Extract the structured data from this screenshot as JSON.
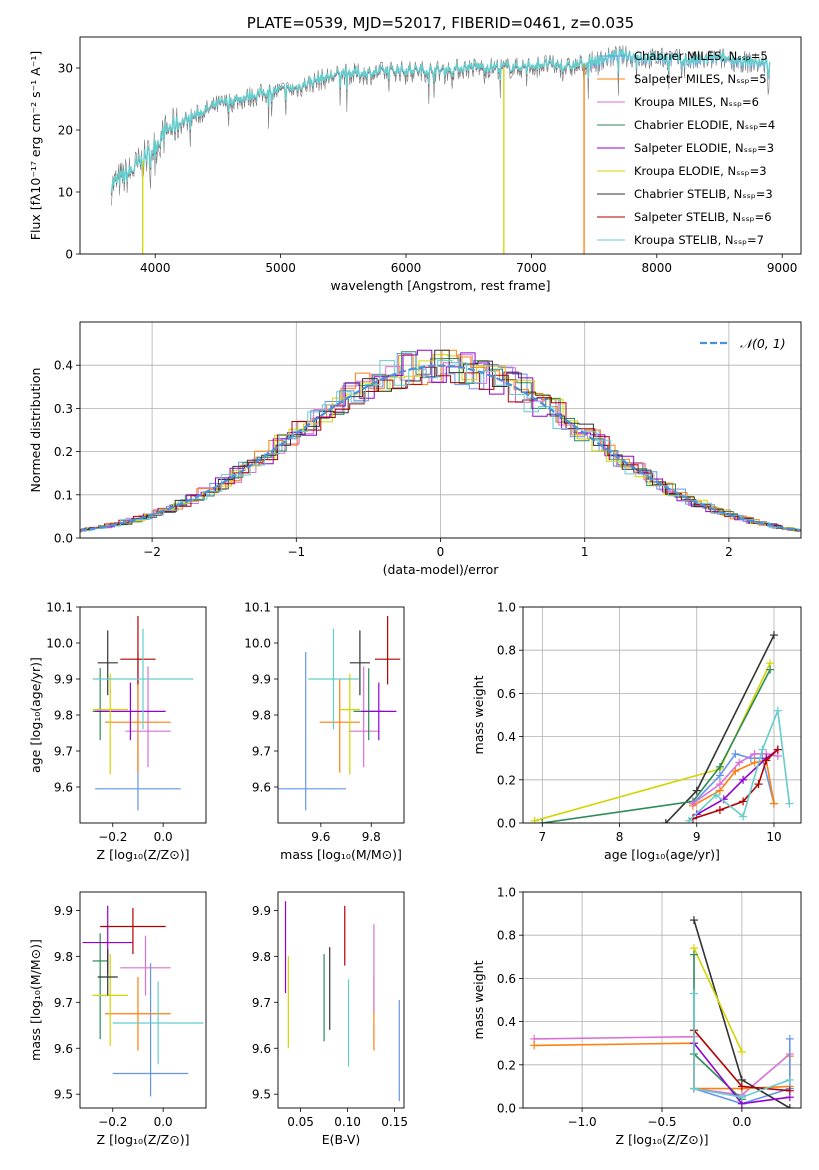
{
  "colors": {
    "chabrier_miles": "#6495ED",
    "salpeter_miles": "#FF7F0E",
    "kroupa_miles": "#DA70D6",
    "chabrier_elodie": "#2E8B57",
    "salpeter_elodie": "#9400D3",
    "kroupa_elodie": "#D4D400",
    "chabrier_stelib": "#333333",
    "salpeter_stelib": "#B20000",
    "kroupa_stelib": "#66CCCC"
  },
  "chart_data": [
    {
      "id": "spectrum",
      "type": "line",
      "title": "PLATE=0539, MJD=52017, FIBERID=0461, z=0.035",
      "xlabel": "wavelength [Angstrom, rest frame]",
      "ylabel": "Flux [fλ10⁻¹⁷ erg cm⁻² s⁻¹ A⁻¹]",
      "xlim": [
        3400,
        9150
      ],
      "ylim": [
        0,
        35
      ],
      "xticks": [
        4000,
        5000,
        6000,
        7000,
        8000,
        9000
      ],
      "yticks": [
        0,
        10,
        20,
        30
      ],
      "legend_position": "top-right",
      "series": [
        {
          "name": "Chabrier MILES, Nₛₛₚ=5",
          "color": "#6495ED"
        },
        {
          "name": "Salpeter MILES, Nₛₛₚ=5",
          "color": "#FF7F0E"
        },
        {
          "name": "Kroupa MILES, Nₛₛₚ=6",
          "color": "#DA70D6"
        },
        {
          "name": "Chabrier ELODIE, Nₛₛₚ=4",
          "color": "#2E8B57"
        },
        {
          "name": "Salpeter ELODIE, Nₛₛₚ=3",
          "color": "#9400D3"
        },
        {
          "name": "Kroupa ELODIE, Nₛₛₚ=3",
          "color": "#D4D400"
        },
        {
          "name": "Chabrier STELIB, Nₛₛₚ=3",
          "color": "#333333"
        },
        {
          "name": "Salpeter STELIB, Nₛₛₚ=6",
          "color": "#B20000"
        },
        {
          "name": "Kroupa STELIB, Nₛₛₚ=7",
          "color": "#66CCCC"
        }
      ],
      "continuum": [
        [
          3650,
          11
        ],
        [
          3800,
          13
        ],
        [
          3950,
          16
        ],
        [
          4100,
          20
        ],
        [
          4300,
          22
        ],
        [
          4500,
          24
        ],
        [
          4700,
          25
        ],
        [
          4900,
          26
        ],
        [
          5100,
          26.5
        ],
        [
          5300,
          28
        ],
        [
          5500,
          29
        ],
        [
          5700,
          29
        ],
        [
          5900,
          29.5
        ],
        [
          6100,
          29.5
        ],
        [
          6300,
          29.5
        ],
        [
          6500,
          30
        ],
        [
          6700,
          30
        ],
        [
          6900,
          30
        ],
        [
          7100,
          30.5
        ],
        [
          7300,
          30
        ],
        [
          7500,
          31
        ],
        [
          7700,
          32
        ],
        [
          7900,
          31.5
        ],
        [
          8100,
          31.5
        ],
        [
          8300,
          31
        ],
        [
          8500,
          31.5
        ],
        [
          8700,
          31
        ],
        [
          8900,
          30.5
        ]
      ],
      "dropouts": [
        {
          "x": 3900,
          "color": "#D4D400"
        },
        {
          "x": 6780,
          "color": "#D4D400"
        },
        {
          "x": 7420,
          "color": "#FF7F0E"
        }
      ]
    },
    {
      "id": "residuals",
      "type": "histogram",
      "xlabel": "(data-model)/error",
      "ylabel": "Normed distribution",
      "xlim": [
        -2.5,
        2.5
      ],
      "ylim": [
        0,
        0.5
      ],
      "xticks": [
        -2,
        -1,
        0,
        1,
        2
      ],
      "yticks": [
        0.0,
        0.1,
        0.2,
        0.3,
        0.4
      ],
      "legend": "𝒩(0, 1)",
      "legend_position": "top-right",
      "grid": true
    },
    {
      "id": "age_vs_Z",
      "type": "errorbar",
      "xlabel": "Z [log₁₀(Z/Z⊙)]",
      "ylabel": "age  [log₁₀(age/yr)]",
      "xlim": [
        -0.33,
        0.17
      ],
      "ylim": [
        9.5,
        10.1
      ],
      "xticks": [
        -0.2,
        0.0
      ],
      "yticks": [
        9.6,
        9.7,
        9.8,
        9.9,
        10.0,
        10.1
      ],
      "points": [
        {
          "x": -0.1,
          "xl": 0.17,
          "xh": 0.17,
          "y": 9.595,
          "yl": 0.06,
          "yh": 0.38,
          "c": "#6495ED"
        },
        {
          "x": -0.1,
          "xl": 0.13,
          "xh": 0.13,
          "y": 9.78,
          "yl": 0.14,
          "yh": 0.12,
          "c": "#FF7F0E"
        },
        {
          "x": -0.06,
          "xl": 0.09,
          "xh": 0.09,
          "y": 9.755,
          "yl": 0.1,
          "yh": 0.18,
          "c": "#DA70D6"
        },
        {
          "x": -0.25,
          "xl": 0.03,
          "xh": 0.03,
          "y": 9.81,
          "yl": 0.08,
          "yh": 0.12,
          "c": "#2E8B57"
        },
        {
          "x": -0.13,
          "xl": 0.14,
          "xh": 0.14,
          "y": 9.81,
          "yl": 0.08,
          "yh": 0.08,
          "c": "#9400D3"
        },
        {
          "x": -0.21,
          "xl": 0.07,
          "xh": 0.07,
          "y": 9.815,
          "yl": 0.18,
          "yh": 0.1,
          "c": "#D4D400"
        },
        {
          "x": -0.22,
          "xl": 0.04,
          "xh": 0.04,
          "y": 9.945,
          "yl": 0.09,
          "yh": 0.09,
          "c": "#333333"
        },
        {
          "x": -0.1,
          "xl": 0.07,
          "xh": 0.07,
          "y": 9.955,
          "yl": 0.07,
          "yh": 0.12,
          "c": "#B20000"
        },
        {
          "x": -0.08,
          "xl": 0.2,
          "xh": 0.2,
          "y": 9.9,
          "yl": 0.14,
          "yh": 0.14,
          "c": "#66CCCC"
        }
      ]
    },
    {
      "id": "age_vs_mass",
      "type": "errorbar",
      "xlabel": "mass [log₁₀(M/M⊙)]",
      "ylabel": "",
      "xlim": [
        9.43,
        9.93
      ],
      "ylim": [
        9.5,
        10.1
      ],
      "xticks": [
        9.6,
        9.8
      ],
      "yticks": [
        9.6,
        9.7,
        9.8,
        9.9,
        10.0,
        10.1
      ],
      "points": [
        {
          "x": 9.54,
          "xl": 0.16,
          "xh": 0.16,
          "y": 9.595,
          "yl": 0.06,
          "yh": 0.38,
          "c": "#6495ED"
        },
        {
          "x": 9.675,
          "xl": 0.08,
          "xh": 0.08,
          "y": 9.78,
          "yl": 0.14,
          "yh": 0.12,
          "c": "#FF7F0E"
        },
        {
          "x": 9.77,
          "xl": 0.06,
          "xh": 0.06,
          "y": 9.755,
          "yl": 0.1,
          "yh": 0.18,
          "c": "#DA70D6"
        },
        {
          "x": 9.79,
          "xl": 0.06,
          "xh": 0.06,
          "y": 9.81,
          "yl": 0.08,
          "yh": 0.12,
          "c": "#2E8B57"
        },
        {
          "x": 9.83,
          "xl": 0.07,
          "xh": 0.07,
          "y": 9.81,
          "yl": 0.08,
          "yh": 0.08,
          "c": "#9400D3"
        },
        {
          "x": 9.715,
          "xl": 0.04,
          "xh": 0.04,
          "y": 9.815,
          "yl": 0.18,
          "yh": 0.1,
          "c": "#D4D400"
        },
        {
          "x": 9.755,
          "xl": 0.04,
          "xh": 0.04,
          "y": 9.945,
          "yl": 0.09,
          "yh": 0.09,
          "c": "#333333"
        },
        {
          "x": 9.865,
          "xl": 0.05,
          "xh": 0.05,
          "y": 9.955,
          "yl": 0.07,
          "yh": 0.12,
          "c": "#B20000"
        },
        {
          "x": 9.65,
          "xl": 0.1,
          "xh": 0.1,
          "y": 9.9,
          "yl": 0.14,
          "yh": 0.14,
          "c": "#66CCCC"
        }
      ]
    },
    {
      "id": "mass_weight_vs_age",
      "type": "line",
      "xlabel": "age  [log₁₀(age/yr)]",
      "ylabel": "mass weight",
      "xlim": [
        6.75,
        10.35
      ],
      "ylim": [
        0,
        1
      ],
      "xticks": [
        7,
        8,
        9,
        10
      ],
      "yticks": [
        0.0,
        0.2,
        0.4,
        0.6,
        0.8,
        1.0
      ],
      "grid": true,
      "series": [
        {
          "c": "#D4D400",
          "x": [
            6.9,
            9.3,
            9.95
          ],
          "y": [
            0.01,
            0.25,
            0.74
          ]
        },
        {
          "c": "#333333",
          "x": [
            8.6,
            9.0,
            10.0
          ],
          "y": [
            0.0,
            0.15,
            0.87
          ]
        },
        {
          "c": "#2E8B57",
          "x": [
            7.0,
            8.95,
            9.3,
            9.95
          ],
          "y": [
            0.0,
            0.1,
            0.26,
            0.71
          ]
        },
        {
          "c": "#6495ED",
          "x": [
            8.95,
            9.3,
            9.5,
            9.7,
            9.85,
            10.0
          ],
          "y": [
            0.09,
            0.22,
            0.32,
            0.3,
            0.3,
            0.09
          ]
        },
        {
          "c": "#FF7F0E",
          "x": [
            8.95,
            9.3,
            9.5,
            9.75,
            9.9,
            10.0
          ],
          "y": [
            0.08,
            0.15,
            0.24,
            0.28,
            0.29,
            0.09
          ]
        },
        {
          "c": "#DA70D6",
          "x": [
            8.95,
            9.3,
            9.55,
            9.75,
            9.9,
            10.05
          ],
          "y": [
            0.09,
            0.18,
            0.28,
            0.32,
            0.32,
            0.31
          ]
        },
        {
          "c": "#9400D3",
          "x": [
            9.0,
            9.35,
            9.6,
            9.9,
            10.05
          ],
          "y": [
            0.04,
            0.11,
            0.2,
            0.3,
            0.34
          ]
        },
        {
          "c": "#B20000",
          "x": [
            8.95,
            9.3,
            9.6,
            9.8,
            9.9,
            10.05
          ],
          "y": [
            0.02,
            0.06,
            0.1,
            0.18,
            0.29,
            0.34
          ]
        },
        {
          "c": "#66CCCC",
          "x": [
            8.9,
            9.25,
            9.6,
            9.85,
            10.05,
            10.2
          ],
          "y": [
            0.01,
            0.13,
            0.03,
            0.34,
            0.52,
            0.09
          ]
        }
      ]
    },
    {
      "id": "mass_vs_Z",
      "type": "errorbar",
      "xlabel": "Z [log₁₀(Z/Z⊙)]",
      "ylabel": "mass [log₁₀(M/M⊙)]",
      "xlim": [
        -0.33,
        0.17
      ],
      "ylim": [
        9.47,
        9.94
      ],
      "xticks": [
        -0.2,
        0.0
      ],
      "yticks": [
        9.5,
        9.6,
        9.7,
        9.8,
        9.9
      ],
      "points": [
        {
          "x": -0.05,
          "xl": 0.15,
          "xh": 0.15,
          "y": 9.545,
          "yl": 0.05,
          "yh": 0.24,
          "c": "#6495ED"
        },
        {
          "x": -0.1,
          "xl": 0.13,
          "xh": 0.13,
          "y": 9.675,
          "yl": 0.08,
          "yh": 0.08,
          "c": "#FF7F0E"
        },
        {
          "x": -0.07,
          "xl": 0.1,
          "xh": 0.1,
          "y": 9.775,
          "yl": 0.06,
          "yh": 0.07,
          "c": "#DA70D6"
        },
        {
          "x": -0.25,
          "xl": 0.03,
          "xh": 0.03,
          "y": 9.79,
          "yl": 0.17,
          "yh": 0.06,
          "c": "#2E8B57"
        },
        {
          "x": -0.22,
          "xl": 0.1,
          "xh": 0.1,
          "y": 9.83,
          "yl": 0.07,
          "yh": 0.08,
          "c": "#9400D3"
        },
        {
          "x": -0.21,
          "xl": 0.07,
          "xh": 0.07,
          "y": 9.715,
          "yl": 0.11,
          "yh": 0.09,
          "c": "#D4D400"
        },
        {
          "x": -0.22,
          "xl": 0.04,
          "xh": 0.04,
          "y": 9.755,
          "yl": 0.04,
          "yh": 0.06,
          "c": "#333333"
        },
        {
          "x": -0.12,
          "xl": 0.13,
          "xh": 0.13,
          "y": 9.865,
          "yl": 0.06,
          "yh": 0.04,
          "c": "#B20000"
        },
        {
          "x": -0.02,
          "xl": 0.18,
          "xh": 0.18,
          "y": 9.655,
          "yl": 0.09,
          "yh": 0.09,
          "c": "#66CCCC"
        }
      ]
    },
    {
      "id": "mass_vs_ebv",
      "type": "errorbar",
      "xlabel": "E(B-V)",
      "ylabel": "",
      "xlim": [
        0.026,
        0.16
      ],
      "ylim": [
        9.47,
        9.94
      ],
      "xticks": [
        0.05,
        0.1,
        0.15
      ],
      "yticks": [
        9.5,
        9.6,
        9.7,
        9.8,
        9.9
      ],
      "points": [
        {
          "x": 0.155,
          "y": 9.595,
          "yl": 0.11,
          "yh": 0.11,
          "c": "#6495ED"
        },
        {
          "x": 0.128,
          "y": 9.675,
          "yl": 0.08,
          "yh": 0.08,
          "c": "#FF7F0E"
        },
        {
          "x": 0.128,
          "y": 9.775,
          "yl": 0.095,
          "yh": 0.095,
          "c": "#DA70D6"
        },
        {
          "x": 0.075,
          "y": 9.71,
          "yl": 0.095,
          "yh": 0.095,
          "c": "#2E8B57"
        },
        {
          "x": 0.034,
          "y": 9.82,
          "yl": 0.1,
          "yh": 0.1,
          "c": "#9400D3"
        },
        {
          "x": 0.037,
          "y": 9.7,
          "yl": 0.1,
          "yh": 0.1,
          "c": "#D4D400"
        },
        {
          "x": 0.081,
          "y": 9.73,
          "yl": 0.09,
          "yh": 0.09,
          "c": "#333333"
        },
        {
          "x": 0.097,
          "y": 9.845,
          "yl": 0.065,
          "yh": 0.065,
          "c": "#B20000"
        },
        {
          "x": 0.101,
          "y": 9.655,
          "yl": 0.095,
          "yh": 0.095,
          "c": "#66CCCC"
        }
      ]
    },
    {
      "id": "mass_weight_vs_Z",
      "type": "line",
      "xlabel": "Z [log₁₀(Z/Z⊙)]",
      "ylabel": "mass weight",
      "xlim": [
        -1.37,
        0.37
      ],
      "ylim": [
        0,
        1
      ],
      "xticks": [
        -1.0,
        -0.5,
        0.0
      ],
      "yticks": [
        0.0,
        0.2,
        0.4,
        0.6,
        0.8,
        1.0
      ],
      "grid": true,
      "series": [
        {
          "c": "#DA70D6",
          "x": [
            -1.3,
            -0.3,
            -0.3,
            0.0,
            0.3
          ],
          "y": [
            0.32,
            0.33,
            0.09,
            0.06,
            0.25
          ]
        },
        {
          "c": "#FF7F0E",
          "x": [
            -1.3,
            -0.3,
            -0.3,
            0.0,
            0.3,
            0.3
          ],
          "y": [
            0.29,
            0.3,
            0.09,
            0.09,
            0.1,
            0.24
          ]
        },
        {
          "c": "#6495ED",
          "x": [
            -0.3,
            0.0,
            0.3,
            0.3
          ],
          "y": [
            0.09,
            0.02,
            0.09,
            0.32
          ]
        },
        {
          "c": "#333333",
          "x": [
            -0.3,
            0.0,
            0.3
          ],
          "y": [
            0.87,
            0.13,
            0.0
          ]
        },
        {
          "c": "#D4D400",
          "x": [
            -0.3,
            0.0
          ],
          "y": [
            0.74,
            0.26
          ]
        },
        {
          "c": "#2E8B57",
          "x": [
            -0.3,
            -0.3,
            0.0
          ],
          "y": [
            0.71,
            0.25,
            0.04
          ]
        },
        {
          "c": "#B20000",
          "x": [
            -0.3,
            0.0,
            0.3
          ],
          "y": [
            0.36,
            0.1,
            0.08
          ]
        },
        {
          "c": "#9400D3",
          "x": [
            -0.3,
            0.0,
            0.3
          ],
          "y": [
            0.3,
            0.02,
            0.05
          ]
        },
        {
          "c": "#66CCCC",
          "x": [
            -0.3,
            -0.3,
            0.0,
            0.3
          ],
          "y": [
            0.53,
            0.09,
            0.05,
            0.13
          ]
        }
      ]
    }
  ]
}
